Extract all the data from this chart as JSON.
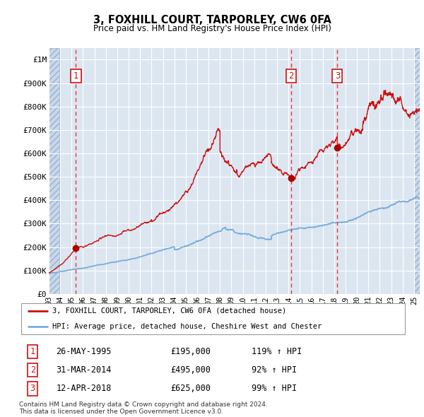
{
  "title": "3, FOXHILL COURT, TARPORLEY, CW6 0FA",
  "subtitle": "Price paid vs. HM Land Registry's House Price Index (HPI)",
  "hpi_label": "HPI: Average price, detached house, Cheshire West and Chester",
  "property_label": "3, FOXHILL COURT, TARPORLEY, CW6 0FA (detached house)",
  "legend_note": "Contains HM Land Registry data © Crown copyright and database right 2024.\nThis data is licensed under the Open Government Licence v3.0.",
  "sales": [
    {
      "num": 1,
      "date": "26-MAY-1995",
      "price": 195000,
      "year": 1995.38,
      "pct": "119%",
      "dir": "↑"
    },
    {
      "num": 2,
      "date": "31-MAR-2014",
      "price": 495000,
      "year": 2014.25,
      "pct": "92%",
      "dir": "↑"
    },
    {
      "num": 3,
      "date": "12-APR-2018",
      "price": 625000,
      "year": 2018.28,
      "pct": "99%",
      "dir": "↑"
    }
  ],
  "ylim": [
    0,
    1050000
  ],
  "yticks": [
    0,
    100000,
    200000,
    300000,
    400000,
    500000,
    600000,
    700000,
    800000,
    900000,
    1000000
  ],
  "ytick_labels": [
    "£0",
    "£100K",
    "£200K",
    "£300K",
    "£400K",
    "£500K",
    "£600K",
    "£700K",
    "£800K",
    "£900K",
    "£1M"
  ],
  "xlim_start": 1993.0,
  "xlim_end": 2025.5,
  "xtick_years": [
    1993,
    1994,
    1995,
    1996,
    1997,
    1998,
    1999,
    2000,
    2001,
    2002,
    2003,
    2004,
    2005,
    2006,
    2007,
    2008,
    2009,
    2010,
    2011,
    2012,
    2013,
    2014,
    2015,
    2016,
    2017,
    2018,
    2019,
    2020,
    2021,
    2022,
    2023,
    2024,
    2025
  ],
  "bg_color": "#dce6f1",
  "line_color_hpi": "#7aaddc",
  "line_color_property": "#cc1111",
  "marker_color": "#aa0000",
  "vline_color": "#ee3333",
  "sale_box_color": "#cc1111",
  "grid_color": "#ffffff",
  "hatch_bg": "#c8d8ec"
}
